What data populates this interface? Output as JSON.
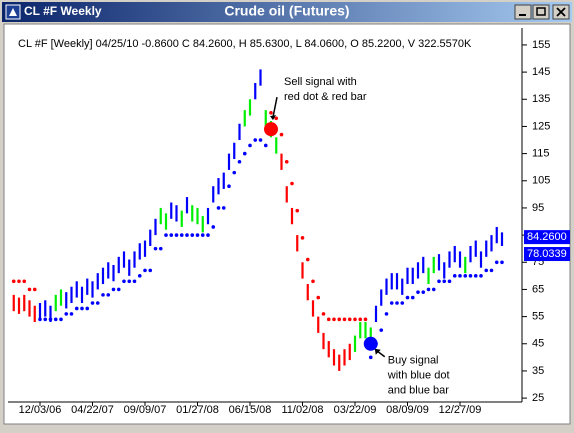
{
  "window": {
    "title": "CL #F Weekly"
  },
  "chart_data": {
    "type": "ohlc",
    "title": "Crude oil (Futures)",
    "subtitle": "CL #F [Weekly] 04/25/10  -0.8600 C 84.2600, H 85.6300, L 84.0600, O 85.2200, V 322.5570K",
    "categories": [
      null,
      null,
      null,
      null,
      null,
      "12/03/06",
      null,
      null,
      null,
      null,
      null,
      null,
      null,
      null,
      null,
      "04/22/07",
      null,
      null,
      null,
      null,
      null,
      null,
      null,
      null,
      null,
      "09/09/07",
      null,
      null,
      null,
      null,
      null,
      null,
      null,
      null,
      null,
      "01/27/08",
      null,
      null,
      null,
      null,
      null,
      null,
      null,
      null,
      null,
      "06/15/08",
      null,
      null,
      null,
      null,
      null,
      null,
      null,
      null,
      null,
      "11/02/08",
      null,
      null,
      null,
      null,
      null,
      null,
      null,
      null,
      null,
      "03/22/09",
      null,
      null,
      null,
      null,
      null,
      null,
      null,
      null,
      null,
      "08/09/09",
      null,
      null,
      null,
      null,
      null,
      null,
      null,
      null,
      null,
      "12/27/09",
      null,
      null,
      null,
      null,
      null,
      null,
      null,
      null
    ],
    "high": [
      63,
      62,
      63,
      61,
      59,
      60,
      61,
      59,
      63,
      65,
      64,
      66,
      68,
      66,
      69,
      68,
      71,
      73,
      75,
      74,
      77,
      79,
      76,
      79,
      82,
      83,
      87,
      91,
      95,
      93,
      97,
      96,
      94,
      99,
      96,
      95,
      92,
      95,
      103,
      106,
      108,
      115,
      119,
      126,
      131,
      135,
      141,
      146,
      131,
      127,
      121,
      115,
      103,
      95,
      85,
      75,
      67,
      61,
      55,
      49,
      46,
      43,
      41,
      43,
      45,
      48,
      53,
      53,
      51,
      59,
      65,
      69,
      71,
      71,
      69,
      73,
      73,
      75,
      77,
      73,
      77,
      78,
      75,
      79,
      81,
      79,
      77,
      81,
      83,
      79,
      83,
      85,
      88,
      86
    ],
    "low": [
      57,
      56,
      57,
      55,
      53,
      54,
      55,
      53,
      57,
      59,
      58,
      60,
      62,
      60,
      63,
      62,
      65,
      67,
      69,
      68,
      71,
      73,
      70,
      73,
      76,
      77,
      81,
      85,
      89,
      87,
      91,
      90,
      88,
      93,
      90,
      89,
      86,
      89,
      97,
      100,
      102,
      109,
      113,
      120,
      125,
      129,
      135,
      140,
      125,
      121,
      115,
      109,
      97,
      89,
      79,
      69,
      61,
      55,
      49,
      43,
      40,
      37,
      35,
      37,
      39,
      42,
      47,
      47,
      45,
      53,
      59,
      63,
      65,
      65,
      63,
      67,
      67,
      69,
      71,
      67,
      71,
      72,
      69,
      73,
      75,
      73,
      71,
      75,
      77,
      73,
      77,
      79,
      82,
      81
    ],
    "colors": [
      "#ff0000",
      "#ff0000",
      "#ff0000",
      "#ff0000",
      "#ff0000",
      "#0000ff",
      "#0000ff",
      "#0000ff",
      "#00ee00",
      "#00ee00",
      "#0000ff",
      "#0000ff",
      "#0000ff",
      "#0000ff",
      "#0000ff",
      "#0000ff",
      "#0000ff",
      "#0000ff",
      "#0000ff",
      "#0000ff",
      "#0000ff",
      "#0000ff",
      "#0000ff",
      "#0000ff",
      "#0000ff",
      "#0000ff",
      "#0000ff",
      "#0000ff",
      "#00ee00",
      "#00ee00",
      "#0000ff",
      "#0000ff",
      "#00ee00",
      "#0000ff",
      "#00ee00",
      "#00ee00",
      "#00ee00",
      "#0000ff",
      "#0000ff",
      "#0000ff",
      "#0000ff",
      "#0000ff",
      "#0000ff",
      "#0000ff",
      "#00ee00",
      "#00ee00",
      "#0000ff",
      "#0000ff",
      "#00ee00",
      "#00ee00",
      "#00ee00",
      "#ff0000",
      "#ff0000",
      "#ff0000",
      "#ff0000",
      "#ff0000",
      "#ff0000",
      "#ff0000",
      "#ff0000",
      "#ff0000",
      "#ff0000",
      "#ff0000",
      "#ff0000",
      "#ff0000",
      "#ff0000",
      "#00ee00",
      "#00ee00",
      "#00ee00",
      "#00ee00",
      "#0000ff",
      "#0000ff",
      "#0000ff",
      "#0000ff",
      "#0000ff",
      "#0000ff",
      "#0000ff",
      "#0000ff",
      "#0000ff",
      "#0000ff",
      "#00ee00",
      "#00ee00",
      "#0000ff",
      "#0000ff",
      "#0000ff",
      "#0000ff",
      "#0000ff",
      "#00ee00",
      "#0000ff",
      "#0000ff",
      "#0000ff",
      "#0000ff",
      "#0000ff",
      "#0000ff",
      "#0000ff"
    ],
    "stops": [
      68,
      68,
      68,
      65,
      65,
      54,
      54,
      54,
      54,
      54,
      56,
      56,
      58,
      58,
      58,
      60,
      60,
      63,
      63,
      65,
      65,
      68,
      68,
      68,
      70,
      72,
      72,
      80,
      80,
      85,
      85,
      85,
      85,
      85,
      85,
      85,
      85,
      85,
      88,
      95,
      95,
      103,
      108,
      112,
      115,
      118,
      120,
      120,
      118,
      130,
      128,
      122,
      112,
      104,
      94,
      84,
      76,
      68,
      62,
      56,
      54,
      54,
      54,
      54,
      54,
      54,
      54,
      54,
      40,
      45,
      50,
      56,
      60,
      60,
      60,
      62,
      62,
      64,
      64,
      65,
      65,
      68,
      68,
      68,
      70,
      70,
      70,
      70,
      70,
      70,
      72,
      72,
      75,
      75
    ],
    "stop_above_color": "#ff0000",
    "stop_below_color": "#0000ff",
    "signals": [
      {
        "lines": [
          "Sell signal with",
          "red dot & red bar"
        ],
        "index": 49,
        "value": 124,
        "color": "#ff0000"
      },
      {
        "lines": [
          "Buy signal",
          "with blue dot",
          "and blue bar"
        ],
        "index": 68,
        "value": 45,
        "color": "#0000ff"
      }
    ],
    "last_values": [
      {
        "value": 84.26,
        "label": "84.2600"
      },
      {
        "value": 78.0339,
        "label": "78.0339"
      }
    ],
    "ylim": [
      24.3,
      160.5
    ],
    "yticks": [
      25,
      35,
      45,
      55,
      65,
      75,
      85,
      95,
      105,
      115,
      125,
      135,
      145,
      155
    ]
  }
}
